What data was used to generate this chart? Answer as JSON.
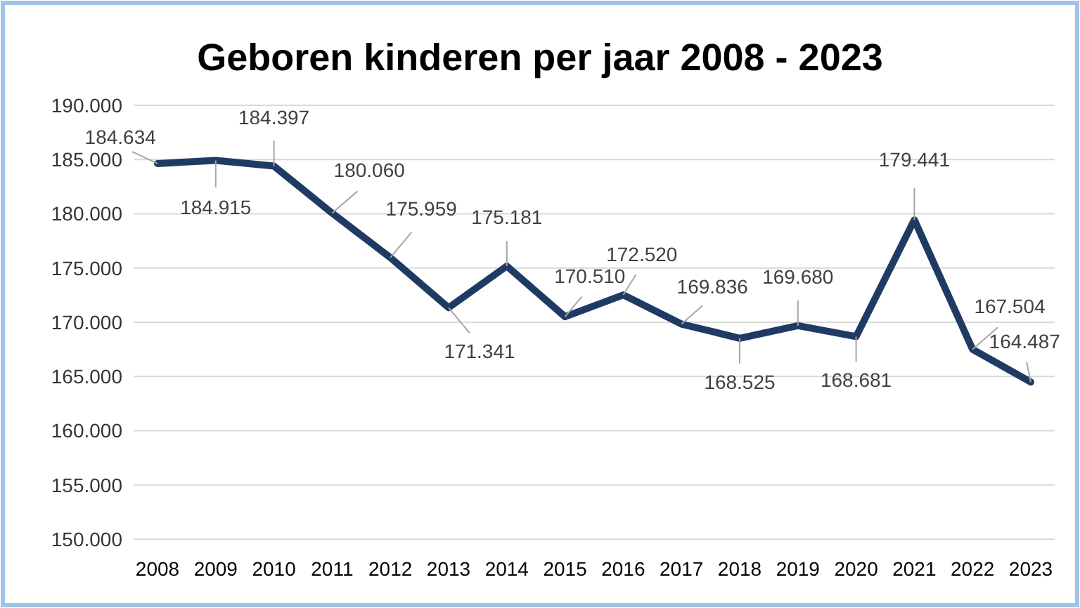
{
  "chart_data": {
    "type": "line",
    "title": "Geboren kinderen per jaar 2008 - 2023",
    "categories": [
      "2008",
      "2009",
      "2010",
      "2011",
      "2012",
      "2013",
      "2014",
      "2015",
      "2016",
      "2017",
      "2018",
      "2019",
      "2020",
      "2021",
      "2022",
      "2023"
    ],
    "series": [
      {
        "color": "#1f3b64",
        "values": [
          184634,
          184915,
          184397,
          180060,
          175959,
          171341,
          175181,
          170510,
          172520,
          169836,
          168525,
          169680,
          168681,
          179441,
          167504,
          164487
        ]
      }
    ],
    "value_labels": [
      "184.634",
      "184.915",
      "184.397",
      "180.060",
      "175.959",
      "171.341",
      "175.181",
      "170.510",
      "172.520",
      "169.836",
      "168.525",
      "169.680",
      "168.681",
      "179.441",
      "167.504",
      "164.487"
    ],
    "ylim": [
      150000,
      190000
    ],
    "yticks": [
      {
        "value": 150000,
        "label": "150.000"
      },
      {
        "value": 155000,
        "label": "155.000"
      },
      {
        "value": 160000,
        "label": "160.000"
      },
      {
        "value": 165000,
        "label": "165.000"
      },
      {
        "value": 170000,
        "label": "170.000"
      },
      {
        "value": 175000,
        "label": "175.000"
      },
      {
        "value": 180000,
        "label": "180.000"
      },
      {
        "value": 185000,
        "label": "185.000"
      },
      {
        "value": 190000,
        "label": "190.000"
      }
    ],
    "grid": "y",
    "marker": "none",
    "line_style": "solid"
  }
}
